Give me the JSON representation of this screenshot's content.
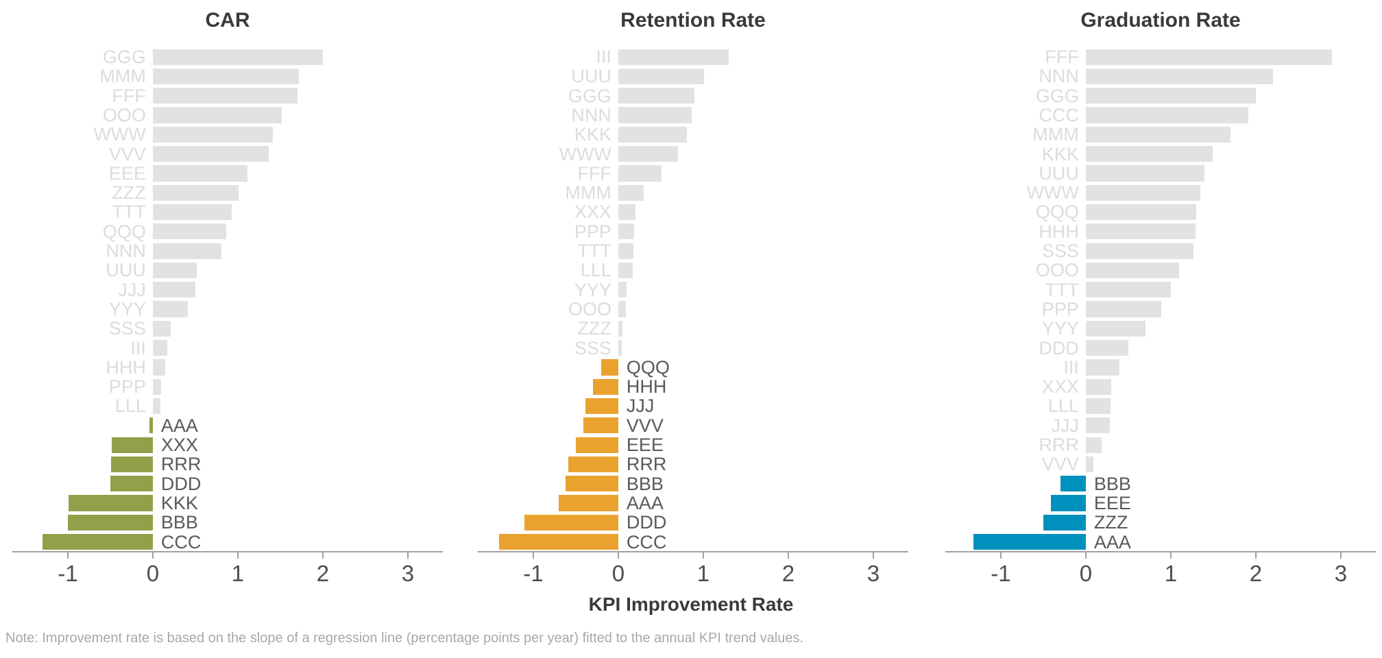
{
  "figure": {
    "axis_title": "KPI Improvement Rate",
    "note": "Note: Improvement rate is based on the slope of a regression line (percentage points per year) fitted to the annual KPI trend values.",
    "axis_ticks": [
      "-1",
      "0",
      "1",
      "2",
      "3"
    ]
  },
  "colors": {
    "positive_bar": "#e2e2e2",
    "car_accent": "#949f4a",
    "retention_accent": "#eaa22f",
    "graduation_accent": "#0090be",
    "axis_line": "#a0a0a0",
    "tick_label": "#4d4d4d",
    "positive_label": "#dcdcdc",
    "negative_label": "#59595b",
    "title_text": "#3a3a3a",
    "note_text": "#a8a8a8"
  },
  "chart_data": [
    {
      "type": "bar",
      "orientation": "horizontal",
      "title": "CAR",
      "accent": "#949f4a",
      "xlabel": "KPI Improvement Rate",
      "xlim": [
        -1.62,
        3.38
      ],
      "grid": false,
      "categories": [
        "GGG",
        "MMM",
        "FFF",
        "OOO",
        "WWW",
        "VVV",
        "EEE",
        "ZZZ",
        "TTT",
        "QQQ",
        "NNN",
        "UUU",
        "JJJ",
        "YYY",
        "SSS",
        "III",
        "HHH",
        "PPP",
        "LLL",
        "AAA",
        "XXX",
        "RRR",
        "DDD",
        "KKK",
        "BBB",
        "CCC"
      ],
      "values": [
        2.0,
        1.72,
        1.7,
        1.52,
        1.41,
        1.36,
        1.11,
        1.01,
        0.93,
        0.86,
        0.81,
        0.52,
        0.5,
        0.41,
        0.21,
        0.17,
        0.15,
        0.1,
        0.09,
        -0.04,
        -0.48,
        -0.49,
        -0.5,
        -0.99,
        -1.0,
        -1.3
      ]
    },
    {
      "type": "bar",
      "orientation": "horizontal",
      "title": "Retention Rate",
      "accent": "#eaa22f",
      "xlabel": "KPI Improvement Rate",
      "xlim": [
        -1.62,
        3.38
      ],
      "grid": false,
      "categories": [
        "III",
        "UUU",
        "GGG",
        "NNN",
        "KKK",
        "WWW",
        "FFF",
        "MMM",
        "XXX",
        "PPP",
        "TTT",
        "LLL",
        "YYY",
        "OOO",
        "ZZZ",
        "SSS",
        "QQQ",
        "HHH",
        "JJJ",
        "VVV",
        "EEE",
        "RRR",
        "BBB",
        "AAA",
        "DDD",
        "CCC"
      ],
      "values": [
        1.3,
        1.01,
        0.9,
        0.86,
        0.81,
        0.7,
        0.51,
        0.3,
        0.2,
        0.19,
        0.18,
        0.17,
        0.1,
        0.09,
        0.05,
        0.04,
        -0.2,
        -0.3,
        -0.39,
        -0.41,
        -0.5,
        -0.59,
        -0.62,
        -0.7,
        -1.1,
        -1.4
      ]
    },
    {
      "type": "bar",
      "orientation": "horizontal",
      "title": "Graduation Rate",
      "accent": "#0090be",
      "xlabel": "KPI Improvement Rate",
      "xlim": [
        -1.62,
        3.38
      ],
      "grid": false,
      "categories": [
        "FFF",
        "NNN",
        "GGG",
        "CCC",
        "MMM",
        "KKK",
        "UUU",
        "WWW",
        "QQQ",
        "HHH",
        "SSS",
        "OOO",
        "TTT",
        "PPP",
        "YYY",
        "DDD",
        "III",
        "XXX",
        "LLL",
        "JJJ",
        "RRR",
        "VVV",
        "BBB",
        "EEE",
        "ZZZ",
        "AAA"
      ],
      "values": [
        2.9,
        2.2,
        2.0,
        1.91,
        1.7,
        1.49,
        1.4,
        1.35,
        1.3,
        1.29,
        1.27,
        1.1,
        1.0,
        0.89,
        0.7,
        0.5,
        0.4,
        0.3,
        0.29,
        0.28,
        0.19,
        0.09,
        -0.3,
        -0.41,
        -0.5,
        -1.32
      ]
    }
  ]
}
